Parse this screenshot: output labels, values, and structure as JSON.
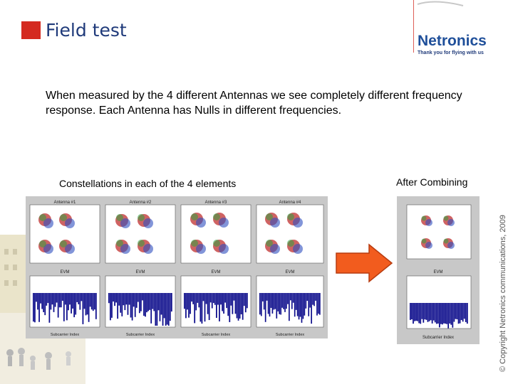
{
  "header": {
    "title": "Field test",
    "logo_text": "Netronics",
    "logo_tagline": "Thank you for flying with us"
  },
  "body": {
    "paragraph": "When measured by the 4 different Antennas we see completely different frequency response. Each Antenna has Nulls in different frequencies."
  },
  "figure_left": {
    "caption": "Constellations in each of the 4 elements",
    "antenna_labels": [
      "Antenna #1",
      "Antenna #2",
      "Antenna #3",
      "Antenna #4"
    ],
    "evm_label": "EVM",
    "xlabel": "Subcarrier Index"
  },
  "figure_right": {
    "caption": "After Combining",
    "evm_label": "EVM",
    "xlabel": "Subcarrier Index"
  },
  "footer": {
    "copyright": "© Copyright Netronics communications, 2009"
  },
  "colors": {
    "accent": "#d42a20",
    "title": "#1f3a7a",
    "arrow": "#f25c1e",
    "bars": "#0a0a8a"
  }
}
